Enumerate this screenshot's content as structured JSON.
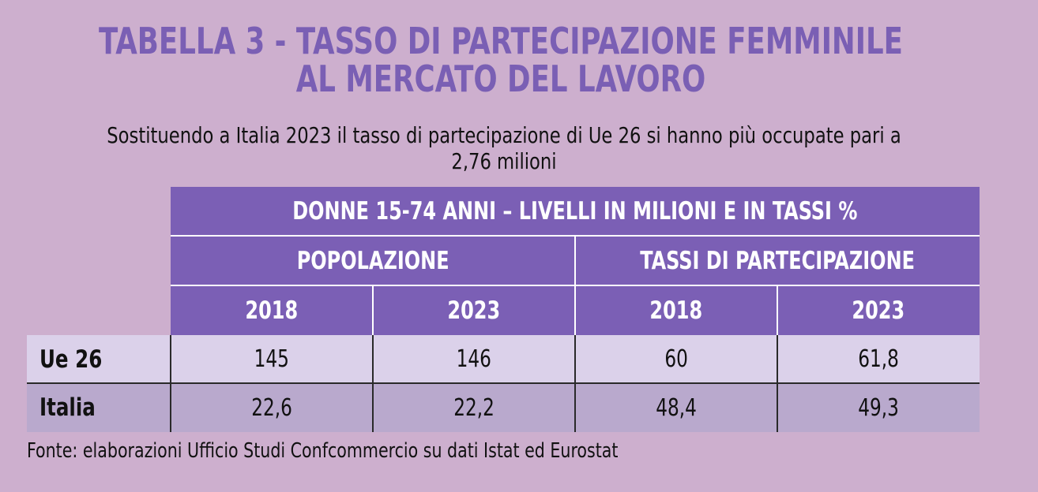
{
  "title": {
    "line1": "TABELLA 3 - TASSO DI PARTECIPAZIONE FEMMINILE",
    "line2": "AL MERCATO DEL LAVORO"
  },
  "subtitle": {
    "line1": "Sostituendo a Italia 2023 il tasso di partecipazione di Ue 26 si hanno più occupate pari a",
    "line2": "2,76 milioni"
  },
  "table": {
    "header_main": "DONNE 15-74 ANNI – LIVELLI IN MILIONI E IN TASSI %",
    "groups": [
      "POPOLAZIONE",
      "TASSI DI PARTECIPAZIONE"
    ],
    "years": [
      "2018",
      "2023",
      "2018",
      "2023"
    ],
    "rows": [
      {
        "label": "Ue 26",
        "values": [
          "145",
          "146",
          "60",
          "61,8"
        ]
      },
      {
        "label": "Italia",
        "values": [
          "22,6",
          "22,2",
          "48,4",
          "49,3"
        ]
      }
    ]
  },
  "source": "Fonte: elaborazioni Ufficio Studi Confcommercio su dati Istat ed Eurostat",
  "colors": {
    "background": "#cdafce",
    "title": "#7a5fb4",
    "header": "#7b5fb5",
    "row_light": "#dbd1ea",
    "row_dark": "#b9a9cd"
  }
}
